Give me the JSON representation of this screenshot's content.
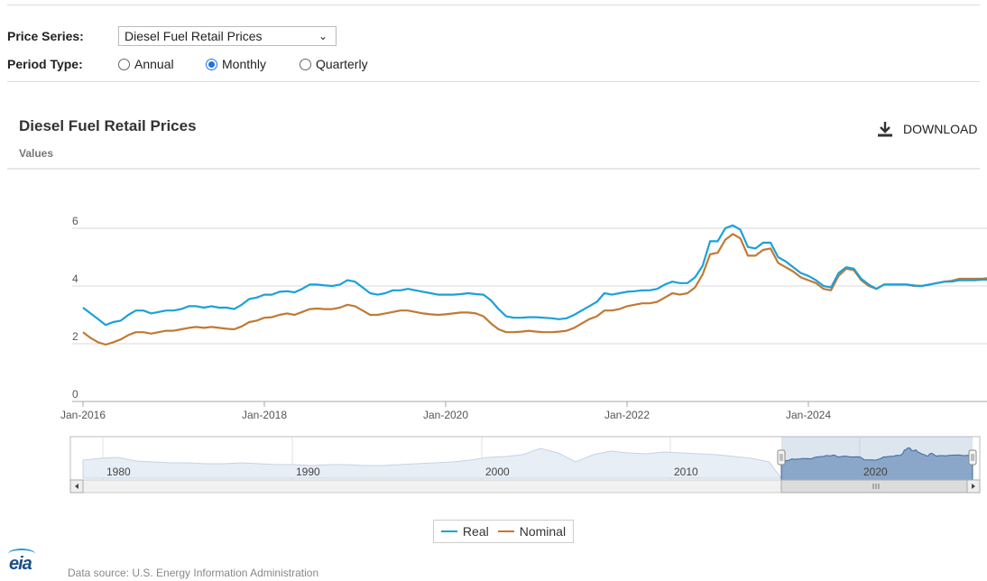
{
  "controls": {
    "price_series_label": "Price Series:",
    "price_series_value": "Diesel Fuel Retail Prices",
    "period_type_label": "Period Type:",
    "period_options": [
      "Annual",
      "Monthly",
      "Quarterly"
    ],
    "period_selected": "Monthly"
  },
  "download_label": "DOWNLOAD",
  "footer": {
    "logo_text": "eia",
    "source": "Data source: U.S. Energy Information Administration"
  },
  "colors": {
    "real": "#1ba1d8",
    "nominal": "#c07a34",
    "grid": "#d8d8d8",
    "navigator_fill": "#8aa6c8"
  },
  "chart_data": {
    "type": "line",
    "title": "Diesel Fuel Retail Prices",
    "ylabel": "Values",
    "ylim": [
      0,
      7
    ],
    "yticks": [
      0,
      2,
      4,
      6
    ],
    "xticks": [
      "Jan-2016",
      "Jan-2018",
      "Jan-2020",
      "Jan-2022",
      "Jan-2024"
    ],
    "xstart": "Jan-2016",
    "grid": true,
    "legend_position": "bottom",
    "series": [
      {
        "name": "Real",
        "color": "#1ba1d8",
        "values": [
          3.25,
          3.05,
          2.85,
          2.65,
          2.75,
          2.8,
          3.0,
          3.15,
          3.15,
          3.05,
          3.1,
          3.15,
          3.15,
          3.2,
          3.3,
          3.3,
          3.25,
          3.3,
          3.25,
          3.25,
          3.2,
          3.35,
          3.55,
          3.6,
          3.7,
          3.7,
          3.8,
          3.82,
          3.78,
          3.9,
          4.05,
          4.05,
          4.02,
          4.0,
          4.05,
          4.2,
          4.15,
          3.95,
          3.75,
          3.7,
          3.75,
          3.85,
          3.85,
          3.9,
          3.85,
          3.8,
          3.75,
          3.7,
          3.7,
          3.7,
          3.72,
          3.75,
          3.72,
          3.7,
          3.5,
          3.2,
          2.95,
          2.9,
          2.9,
          2.92,
          2.92,
          2.9,
          2.88,
          2.85,
          2.88,
          3.0,
          3.15,
          3.3,
          3.45,
          3.75,
          3.7,
          3.75,
          3.8,
          3.82,
          3.85,
          3.85,
          3.9,
          4.05,
          4.15,
          4.1,
          4.1,
          4.3,
          4.7,
          5.55,
          5.55,
          6.0,
          6.1,
          5.95,
          5.35,
          5.3,
          5.5,
          5.5,
          5.0,
          4.85,
          4.65,
          4.45,
          4.35,
          4.2,
          4.0,
          3.95,
          4.45,
          4.65,
          4.6,
          4.25,
          4.05,
          3.9,
          4.05,
          4.05,
          4.05,
          4.05,
          4.02,
          4.0,
          4.05,
          4.1,
          4.15,
          4.15,
          4.2,
          4.2,
          4.2,
          4.22,
          4.22,
          4.15,
          4.1,
          4.05,
          4.05,
          4.1,
          4.12,
          4.12,
          4.1,
          4.05
        ]
      },
      {
        "name": "Nominal",
        "color": "#c07a34",
        "values": [
          2.4,
          2.2,
          2.05,
          1.97,
          2.05,
          2.15,
          2.3,
          2.4,
          2.4,
          2.35,
          2.4,
          2.45,
          2.45,
          2.5,
          2.55,
          2.58,
          2.55,
          2.58,
          2.55,
          2.52,
          2.5,
          2.6,
          2.75,
          2.8,
          2.9,
          2.92,
          3.0,
          3.05,
          3.0,
          3.1,
          3.2,
          3.22,
          3.2,
          3.2,
          3.25,
          3.35,
          3.3,
          3.15,
          3.0,
          3.0,
          3.05,
          3.1,
          3.15,
          3.15,
          3.1,
          3.05,
          3.02,
          3.0,
          3.02,
          3.05,
          3.08,
          3.08,
          3.05,
          2.95,
          2.7,
          2.5,
          2.4,
          2.4,
          2.42,
          2.45,
          2.42,
          2.4,
          2.4,
          2.42,
          2.45,
          2.55,
          2.7,
          2.85,
          2.95,
          3.15,
          3.15,
          3.2,
          3.3,
          3.35,
          3.4,
          3.4,
          3.45,
          3.6,
          3.75,
          3.7,
          3.75,
          3.95,
          4.4,
          5.1,
          5.15,
          5.6,
          5.8,
          5.65,
          5.05,
          5.05,
          5.25,
          5.3,
          4.8,
          4.65,
          4.5,
          4.3,
          4.2,
          4.1,
          3.9,
          3.85,
          4.35,
          4.6,
          4.55,
          4.2,
          4.0,
          3.9,
          4.05,
          4.05,
          4.05,
          4.05,
          4.0,
          4.0,
          4.05,
          4.1,
          4.15,
          4.18,
          4.25,
          4.25,
          4.25,
          4.25,
          4.28,
          4.2,
          4.15,
          4.1,
          4.1,
          4.18,
          4.22,
          4.25,
          4.25,
          4.2
        ]
      }
    ],
    "navigator": {
      "xticks": [
        "1980",
        "1990",
        "2000",
        "2010",
        "2020"
      ]
    }
  }
}
